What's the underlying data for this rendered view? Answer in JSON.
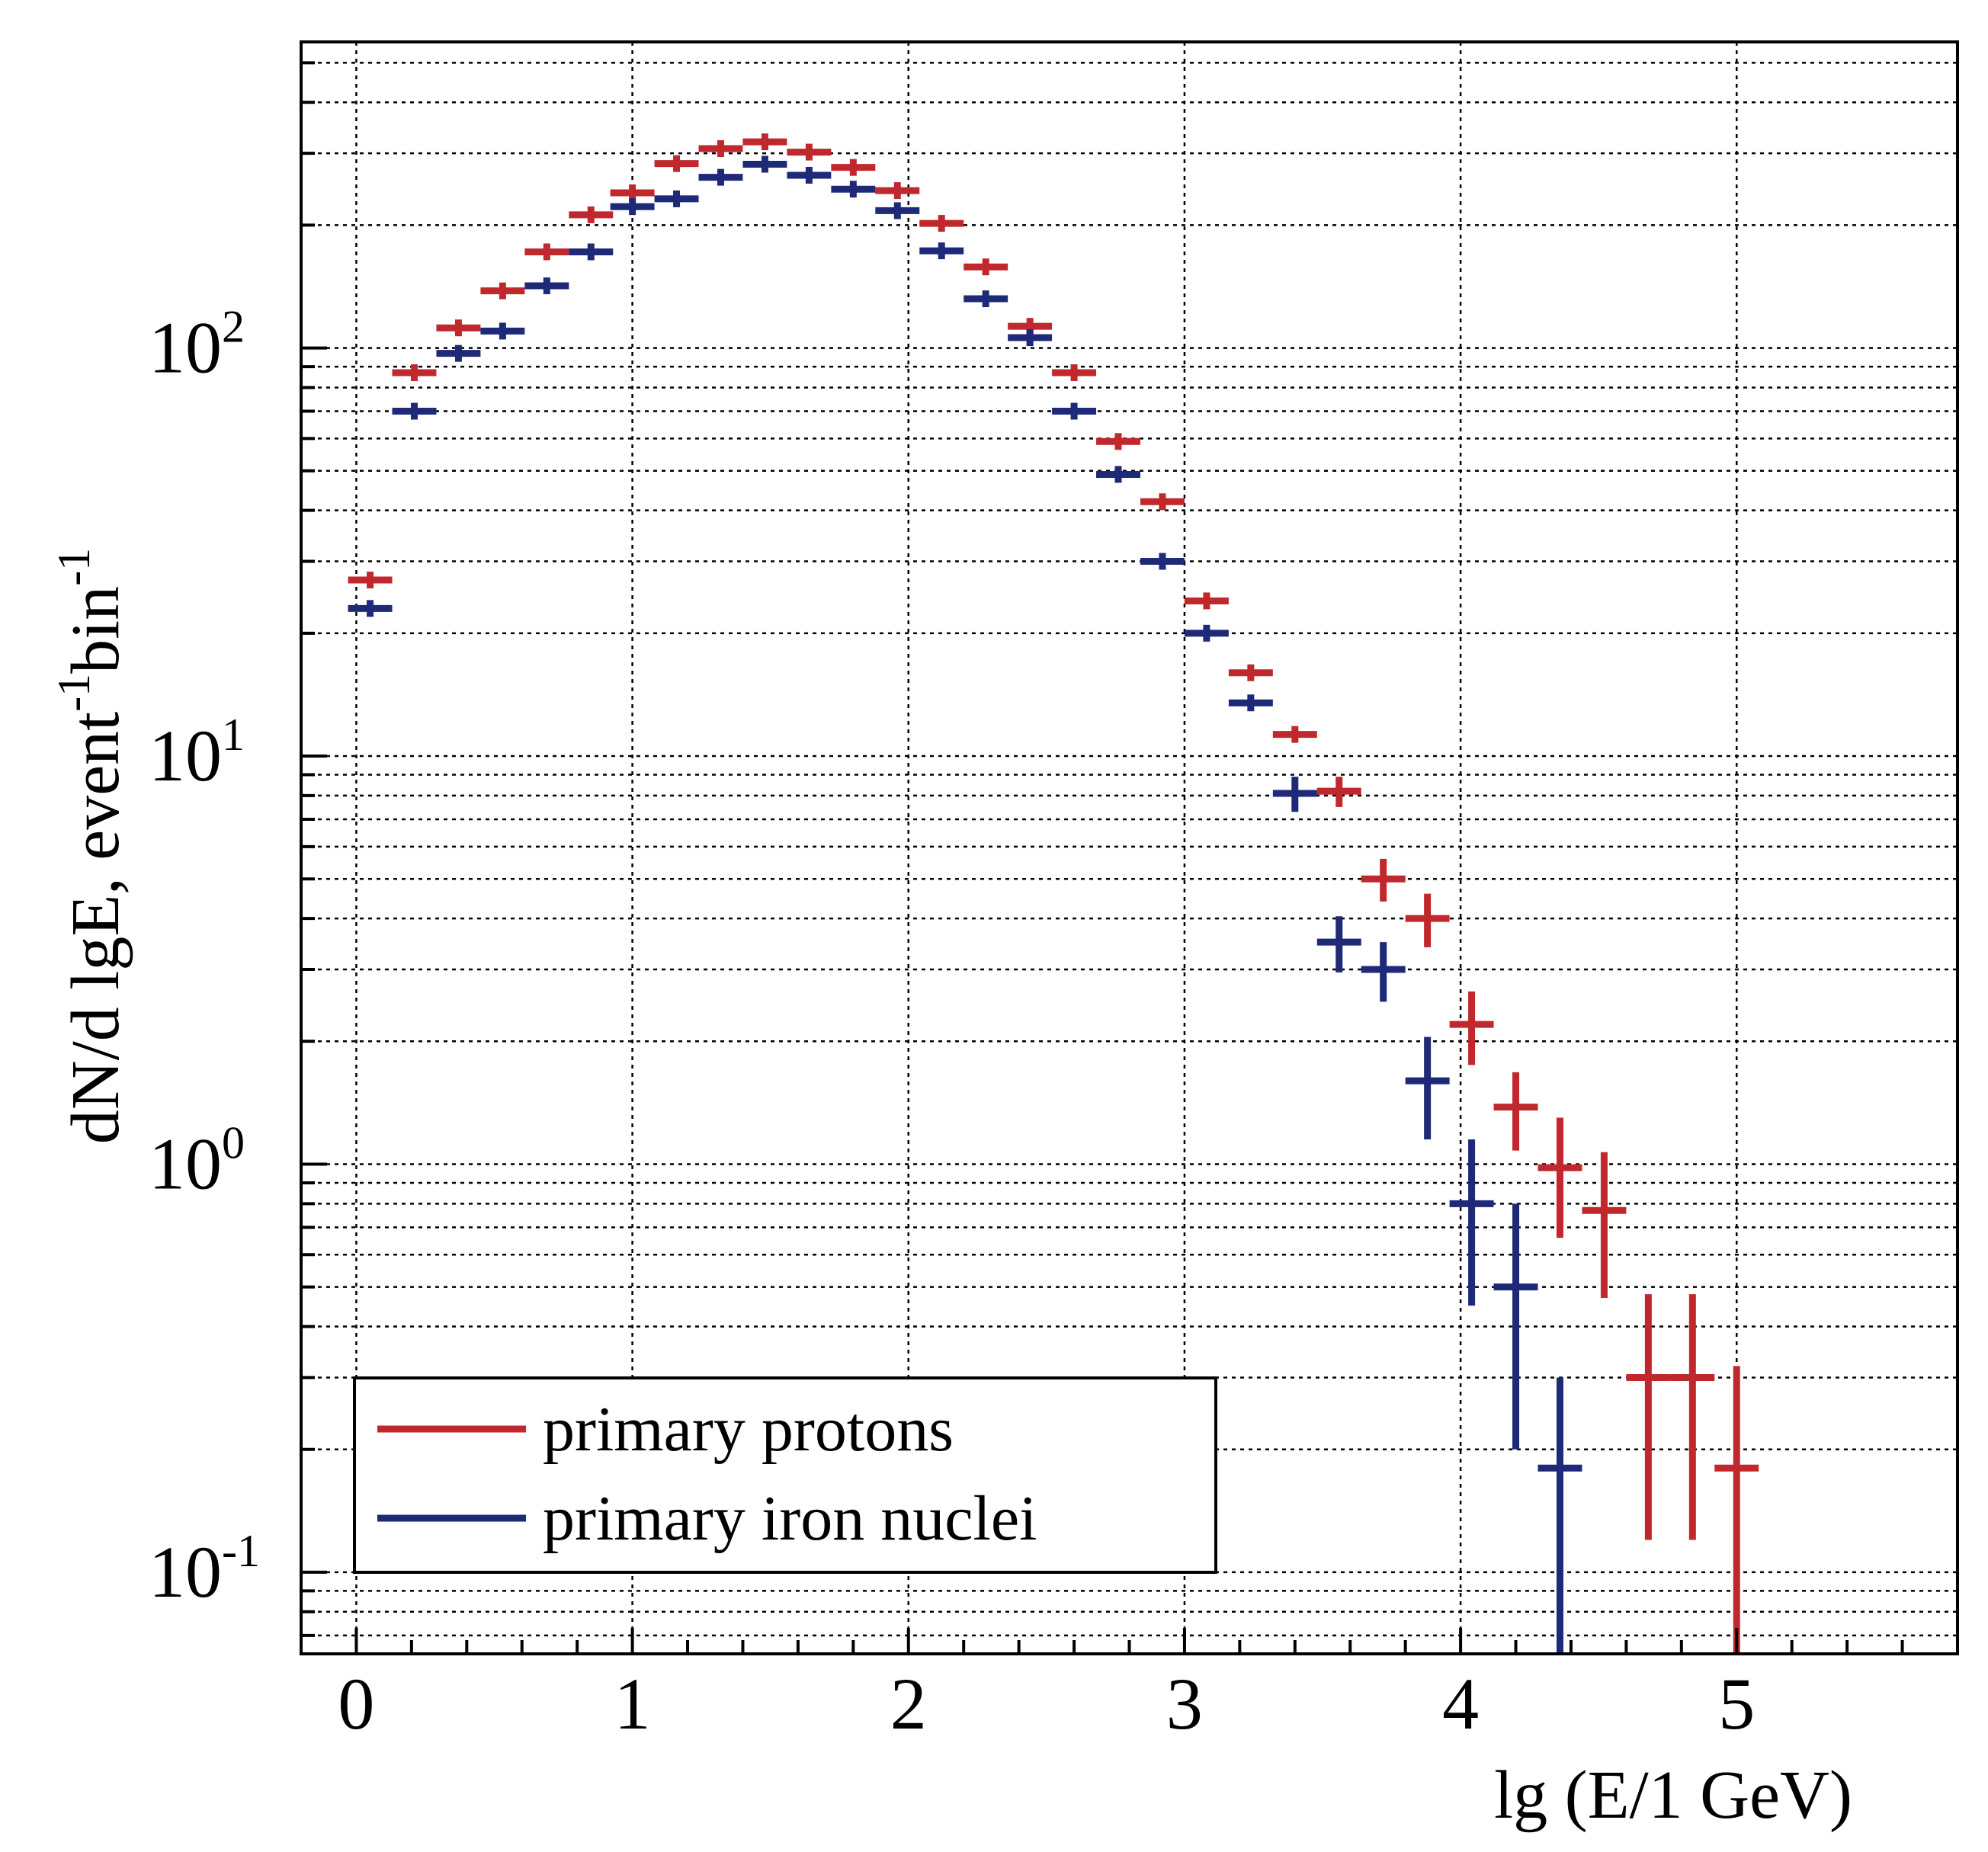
{
  "chart_data": {
    "type": "scatter",
    "style": "histogram points with horizontal bin width and vertical error bars",
    "title": "",
    "xlabel": "lg (E/1 GeV)",
    "ylabel": "dN/d lgE, event-1bin-1",
    "ylabel_parts": {
      "base": "dN/d lgE, event",
      "sup1": "-1",
      "mid": "bin",
      "sup2": "-1"
    },
    "xlim": [
      -0.2,
      5.8
    ],
    "ylim_log10": [
      -1.2,
      2.75
    ],
    "yscale": "log",
    "grid": true,
    "legend_position": "bottom-left",
    "x_ticks": [
      {
        "value": 0,
        "label": "0"
      },
      {
        "value": 1,
        "label": "1"
      },
      {
        "value": 2,
        "label": "2"
      },
      {
        "value": 3,
        "label": "3"
      },
      {
        "value": 4,
        "label": "4"
      },
      {
        "value": 5,
        "label": "5"
      }
    ],
    "y_ticks": [
      {
        "value": 0.1,
        "base": "10",
        "exp": "-1"
      },
      {
        "value": 1,
        "base": "10",
        "exp": "0"
      },
      {
        "value": 10,
        "base": "10",
        "exp": "1"
      },
      {
        "value": 100,
        "base": "10",
        "exp": "2"
      }
    ],
    "bin_half_width": 0.08,
    "series": [
      {
        "name": "primary protons",
        "color": "#c0282d",
        "points": [
          {
            "x": 0.05,
            "y": 27,
            "err": 0
          },
          {
            "x": 0.21,
            "y": 87,
            "err": 0
          },
          {
            "x": 0.37,
            "y": 112,
            "err": 0
          },
          {
            "x": 0.53,
            "y": 138,
            "err": 0
          },
          {
            "x": 0.69,
            "y": 172,
            "err": 0
          },
          {
            "x": 0.85,
            "y": 212,
            "err": 0
          },
          {
            "x": 1.0,
            "y": 240,
            "err": 0
          },
          {
            "x": 1.16,
            "y": 283,
            "err": 0
          },
          {
            "x": 1.32,
            "y": 308,
            "err": 0
          },
          {
            "x": 1.48,
            "y": 320,
            "err": 0
          },
          {
            "x": 1.64,
            "y": 302,
            "err": 0
          },
          {
            "x": 1.8,
            "y": 277,
            "err": 0
          },
          {
            "x": 1.96,
            "y": 243,
            "err": 0
          },
          {
            "x": 2.12,
            "y": 202,
            "err": 0
          },
          {
            "x": 2.28,
            "y": 158,
            "err": 0
          },
          {
            "x": 2.44,
            "y": 113,
            "err": 0
          },
          {
            "x": 2.6,
            "y": 87,
            "err": 0
          },
          {
            "x": 2.76,
            "y": 59,
            "err": 0
          },
          {
            "x": 2.92,
            "y": 42,
            "err": 0
          },
          {
            "x": 3.08,
            "y": 24,
            "err": 0
          },
          {
            "x": 3.24,
            "y": 16,
            "err": 0
          },
          {
            "x": 3.4,
            "y": 11.3,
            "err": 0
          },
          {
            "x": 3.56,
            "y": 8.2,
            "err": 0.7
          },
          {
            "x": 3.72,
            "y": 5.0,
            "err": 0.6
          },
          {
            "x": 3.88,
            "y": 4.0,
            "err": 0.6
          },
          {
            "x": 4.04,
            "y": 2.2,
            "err": 0.45
          },
          {
            "x": 4.2,
            "y": 1.38,
            "err": 0.3
          },
          {
            "x": 4.36,
            "y": 0.98,
            "err": 0.32
          },
          {
            "x": 4.52,
            "y": 0.77,
            "err": 0.3
          },
          {
            "x": 4.68,
            "y": 0.3,
            "err": 0.18
          },
          {
            "x": 4.84,
            "y": 0.3,
            "err": 0.18
          },
          {
            "x": 5.0,
            "y": 0.18,
            "err": 0.14
          }
        ]
      },
      {
        "name": "primary iron nuclei",
        "color": "#1e2a78",
        "points": [
          {
            "x": 0.05,
            "y": 23,
            "err": 0
          },
          {
            "x": 0.21,
            "y": 70,
            "err": 0
          },
          {
            "x": 0.37,
            "y": 97,
            "err": 0
          },
          {
            "x": 0.53,
            "y": 110,
            "err": 0
          },
          {
            "x": 0.69,
            "y": 142,
            "err": 0
          },
          {
            "x": 0.85,
            "y": 172,
            "err": 0
          },
          {
            "x": 1.0,
            "y": 222,
            "err": 0
          },
          {
            "x": 1.16,
            "y": 232,
            "err": 0
          },
          {
            "x": 1.32,
            "y": 262,
            "err": 0
          },
          {
            "x": 1.48,
            "y": 282,
            "err": 0
          },
          {
            "x": 1.64,
            "y": 265,
            "err": 0
          },
          {
            "x": 1.8,
            "y": 245,
            "err": 0
          },
          {
            "x": 1.96,
            "y": 217,
            "err": 0
          },
          {
            "x": 2.12,
            "y": 173,
            "err": 0
          },
          {
            "x": 2.28,
            "y": 132,
            "err": 0
          },
          {
            "x": 2.44,
            "y": 106,
            "err": 0
          },
          {
            "x": 2.6,
            "y": 70,
            "err": 0
          },
          {
            "x": 2.76,
            "y": 49,
            "err": 0
          },
          {
            "x": 2.92,
            "y": 30,
            "err": 0
          },
          {
            "x": 3.08,
            "y": 20,
            "err": 0
          },
          {
            "x": 3.24,
            "y": 13.5,
            "err": 0
          },
          {
            "x": 3.4,
            "y": 8.1,
            "err": 0.8
          },
          {
            "x": 3.56,
            "y": 3.5,
            "err": 0.55
          },
          {
            "x": 3.72,
            "y": 3.0,
            "err": 0.5
          },
          {
            "x": 3.88,
            "y": 1.6,
            "err": 0.45
          },
          {
            "x": 4.04,
            "y": 0.8,
            "err": 0.35
          },
          {
            "x": 4.2,
            "y": 0.5,
            "err": 0.3
          },
          {
            "x": 4.36,
            "y": 0.18,
            "err": 0.12
          }
        ]
      }
    ]
  }
}
